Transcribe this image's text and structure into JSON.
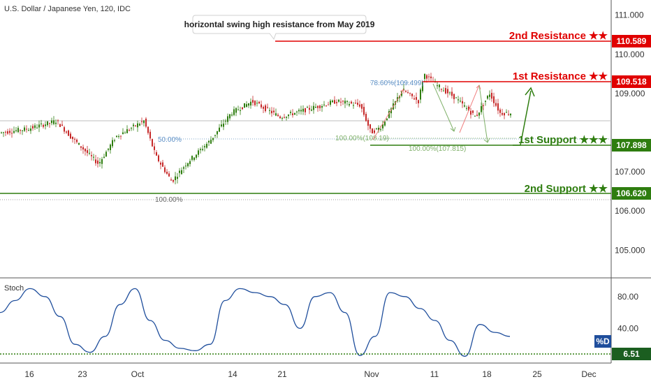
{
  "header": {
    "symbol_title": "U.S. Dollar / Japanese Yen, 120, IDC"
  },
  "annotation": {
    "text": "horizontal swing high resistance from May 2019"
  },
  "levels": [
    {
      "label": "2nd Resistance ★★",
      "value": "110.589",
      "color": "#e00000"
    },
    {
      "label": "1st Resistance ★★",
      "value": "109.518",
      "color": "#e00000"
    },
    {
      "label": "1st Support ★★★",
      "value": "107.898",
      "color": "#2e7d0f"
    },
    {
      "label": "2nd Support ★★",
      "value": "106.620",
      "color": "#2e7d0f"
    }
  ],
  "fib_labels": [
    {
      "text": "78.60%(109.499)"
    },
    {
      "text": "100.00%(108.19)"
    },
    {
      "text": "100.00%(107.815)"
    },
    {
      "text": "50.00%"
    },
    {
      "text": "100.00%"
    }
  ],
  "oscillator": {
    "title": "Stoch",
    "series_badge": "%D",
    "current_value": "6.51",
    "y_ticks": [
      "80.00",
      "40.00"
    ]
  },
  "colors": {
    "up_candle": "#2e7d0f",
    "down_candle": "#c62828",
    "resistance": "#e00000",
    "support": "#2e7d0f",
    "stoch_line": "#1f4e9c"
  },
  "chart_data": {
    "type": "line",
    "title": "U.S. Dollar / Japanese Yen, 120, IDC",
    "y_axis_ticks": [
      "111.000",
      "110.000",
      "109.000",
      "107.000",
      "106.000",
      "105.000"
    ],
    "x_axis_ticks": [
      "16",
      "23",
      "Oct",
      "14",
      "21",
      "Nov",
      "11",
      "18",
      "25",
      "Dec"
    ],
    "ylim": [
      104.4,
      111.35
    ],
    "series": [
      {
        "x": [
          "16",
          "23",
          "Oct",
          "14",
          "21",
          "Nov",
          "11",
          "18",
          "21"
        ],
        "values": [
          108.0,
          107.8,
          108.2,
          108.7,
          108.6,
          108.0,
          109.3,
          108.6,
          108.4
        ]
      }
    ],
    "horizontal_levels": [
      110.589,
      109.518,
      107.898,
      106.62
    ],
    "stoch_ylim": [
      0,
      100
    ],
    "stoch_values": [
      60,
      75,
      90,
      80,
      55,
      20,
      10,
      30,
      70,
      90,
      50,
      25,
      15,
      12,
      20,
      75,
      90,
      85,
      80,
      70,
      40,
      80,
      85,
      60,
      6,
      30,
      85,
      80,
      65,
      50,
      25,
      5,
      45,
      35,
      30
    ]
  }
}
